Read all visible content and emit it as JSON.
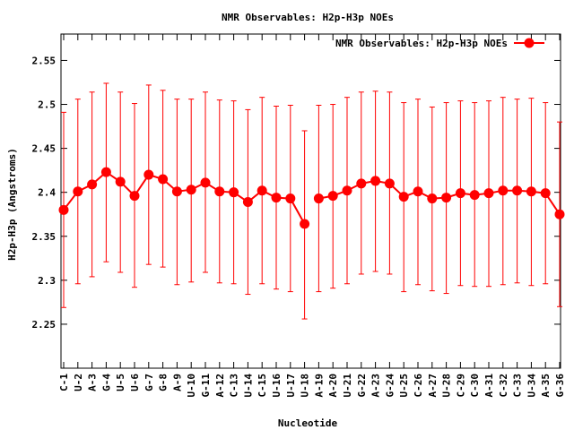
{
  "chart_data": {
    "type": "line",
    "title": "NMR Observables: H2p-H3p NOEs",
    "xlabel": "Nucleotide",
    "ylabel": "H2p-H3p (Angstroms)",
    "ylim": [
      2.2,
      2.58
    ],
    "yticks": [
      2.25,
      2.3,
      2.35,
      2.4,
      2.45,
      2.5,
      2.55
    ],
    "ytick_labels": [
      "2.25",
      "2.3",
      "2.35",
      "2.4",
      "2.45",
      "2.5",
      "2.55"
    ],
    "grid": false,
    "legend_position": "top-right",
    "color": "#ff0000",
    "categories": [
      "C-1",
      "U-2",
      "A-3",
      "G-4",
      "U-5",
      "U-6",
      "G-7",
      "G-8",
      "A-9",
      "U-10",
      "G-11",
      "A-12",
      "C-13",
      "U-14",
      "C-15",
      "U-16",
      "U-17",
      "U-18",
      "A-19",
      "A-20",
      "U-21",
      "G-22",
      "A-23",
      "G-24",
      "U-25",
      "C-26",
      "A-27",
      "U-28",
      "C-29",
      "C-30",
      "A-31",
      "C-32",
      "C-33",
      "U-34",
      "A-35",
      "G-36"
    ],
    "gap_after_index": 17,
    "series": [
      {
        "name": "NMR Observables: H2p-H3p NOEs",
        "values": [
          2.38,
          2.401,
          2.409,
          2.423,
          2.412,
          2.396,
          2.42,
          2.415,
          2.401,
          2.403,
          2.411,
          2.401,
          2.4,
          2.389,
          2.402,
          2.394,
          2.393,
          2.364,
          2.393,
          2.396,
          2.402,
          2.41,
          2.413,
          2.41,
          2.395,
          2.401,
          2.393,
          2.394,
          2.399,
          2.397,
          2.399,
          2.402,
          2.402,
          2.401,
          2.399,
          2.375
        ],
        "error_low": [
          2.269,
          2.296,
          2.304,
          2.321,
          2.309,
          2.292,
          2.318,
          2.315,
          2.295,
          2.298,
          2.309,
          2.297,
          2.296,
          2.284,
          2.296,
          2.29,
          2.287,
          2.256,
          2.287,
          2.291,
          2.296,
          2.307,
          2.31,
          2.307,
          2.287,
          2.295,
          2.288,
          2.285,
          2.294,
          2.293,
          2.293,
          2.295,
          2.297,
          2.294,
          2.296,
          2.27
        ],
        "error_high": [
          2.491,
          2.506,
          2.514,
          2.524,
          2.514,
          2.501,
          2.522,
          2.516,
          2.506,
          2.506,
          2.514,
          2.505,
          2.504,
          2.494,
          2.508,
          2.498,
          2.499,
          2.47,
          2.499,
          2.5,
          2.508,
          2.514,
          2.515,
          2.514,
          2.502,
          2.506,
          2.497,
          2.502,
          2.504,
          2.502,
          2.504,
          2.508,
          2.506,
          2.507,
          2.502,
          2.48
        ]
      }
    ]
  }
}
